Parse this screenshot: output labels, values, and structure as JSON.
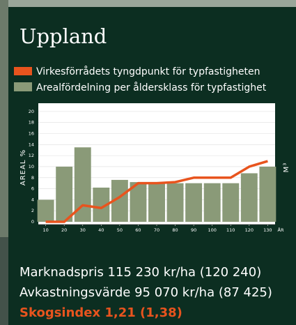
{
  "chart_data": {
    "type": "bar",
    "title": "Uppland",
    "ylabel": "AREAL %",
    "y2label": "M³",
    "xlabel": "ÅR",
    "x": [
      10,
      20,
      30,
      40,
      50,
      60,
      70,
      80,
      90,
      100,
      110,
      120,
      130
    ],
    "xlim": [
      6,
      134
    ],
    "xticks": [
      10,
      20,
      30,
      40,
      50,
      60,
      70,
      80,
      90,
      100,
      110,
      120,
      130
    ],
    "ylim": [
      -0.5,
      21.5
    ],
    "yticks": [
      0,
      2,
      4,
      6,
      8,
      10,
      12,
      14,
      16,
      18,
      20
    ],
    "grid": true,
    "series": [
      {
        "name": "Arealfördelning per åldersklass för typfastighet",
        "type": "bar",
        "color": "#8a9a78",
        "values": [
          4,
          10,
          13.5,
          6.2,
          7.6,
          7.2,
          7,
          7,
          7,
          7,
          7,
          8.8,
          10
        ]
      },
      {
        "name": "Virkesförrådets tyngdpunkt för typfastigheten",
        "type": "line",
        "color": "#e8541e",
        "values": [
          0,
          0,
          3,
          2.5,
          4.5,
          7,
          7,
          7.2,
          8,
          8,
          8,
          10,
          11
        ]
      }
    ]
  },
  "footer": [
    "Marknadspris 115 230 kr/ha (120 240)",
    "Avkastningsvärde 95 070 kr/ha (87 425)",
    "Skogsindex 1,21 (1,38)"
  ]
}
